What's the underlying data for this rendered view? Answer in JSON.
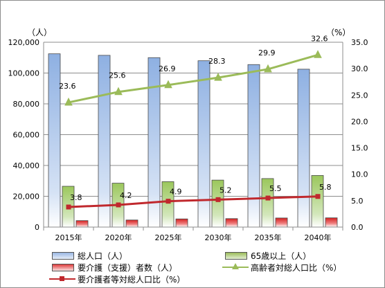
{
  "chart_data": {
    "type": "bar",
    "title": "",
    "categories": [
      "2015年",
      "2020年",
      "2025年",
      "2030年",
      "2035年",
      "2040年"
    ],
    "left_axis": {
      "unit": "（人）",
      "min": 0,
      "max": 120000,
      "step": 20000,
      "tick_labels": [
        "0",
        "20,000",
        "40,000",
        "60,000",
        "80,000",
        "100,000",
        "120,000"
      ]
    },
    "right_axis": {
      "unit": "（%）",
      "min": 0,
      "max": 35,
      "step": 5,
      "tick_labels": [
        "0.0",
        "5.0",
        "10.0",
        "15.0",
        "20.0",
        "25.0",
        "30.0",
        "35.0"
      ]
    },
    "grid": true,
    "legend_position": "bottom",
    "series": [
      {
        "name": "総人口（人）",
        "type": "bar",
        "axis": "left",
        "color": "#9ab7e3",
        "values": [
          112500,
          111500,
          110000,
          108000,
          105500,
          102500
        ]
      },
      {
        "name": "65歳以上（人）",
        "type": "bar",
        "axis": "left",
        "color": "#9bbb59",
        "values": [
          26500,
          28500,
          29500,
          30500,
          31500,
          33500
        ]
      },
      {
        "name": "要介護（支援）者数（人）",
        "type": "bar",
        "axis": "left",
        "color": "#e03c3c",
        "values": [
          4200,
          4600,
          5300,
          5500,
          5900,
          6000
        ]
      },
      {
        "name": "高齢者対総人口比（%）",
        "type": "line",
        "axis": "right",
        "color": "#9bbb59",
        "values": [
          23.6,
          25.6,
          26.9,
          28.3,
          29.9,
          32.6
        ],
        "labels": [
          "23.6",
          "25.6",
          "26.9",
          "28.3",
          "29.9",
          "32.6"
        ]
      },
      {
        "name": "要介護者等対総人口比（%）",
        "type": "line",
        "axis": "right",
        "color": "#c0282d",
        "values": [
          3.8,
          4.2,
          4.9,
          5.2,
          5.5,
          5.8
        ],
        "labels": [
          "3.8",
          "4.2",
          "4.9",
          "5.2",
          "5.5",
          "5.8"
        ]
      }
    ]
  }
}
